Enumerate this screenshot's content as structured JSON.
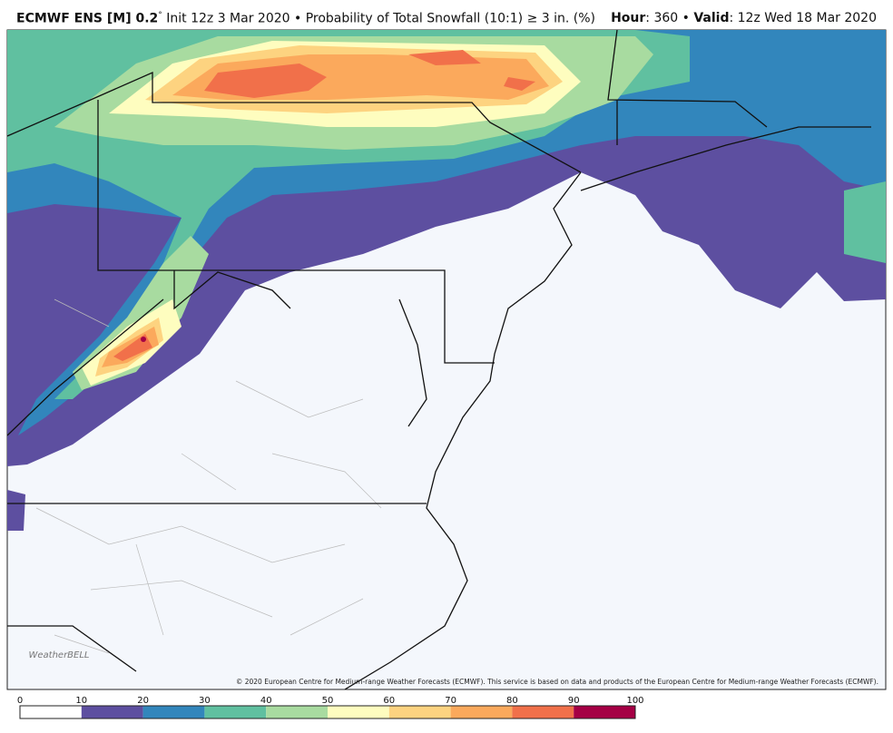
{
  "header": {
    "model": "ECMWF ENS [M] 0.2",
    "degree": "°",
    "title": "Init 12z 3 Mar 2020 • Probability of Total Snowfall (10:1) ≥ 3 in. (%)",
    "hour_label": "Hour",
    "hour": ": 360 •",
    "valid_label": "Valid",
    "valid": ": 12z Wed 18 Mar 2020"
  },
  "logo": "WeatherBELL",
  "copyright": "© 2020 European Centre for Medium-range Weather Forecasts (ECMWF). This service is based on data and products of the European Centre for Medium-range Weather Forecasts (ECMWF).",
  "colorbar": {
    "ticks": [
      0,
      10,
      20,
      30,
      40,
      50,
      60,
      70,
      80,
      90,
      100
    ],
    "colors": [
      "#ffffff",
      "#5d4fa0",
      "#3286bc",
      "#60c0a0",
      "#a8dba0",
      "#fefdbf",
      "#fdd380",
      "#fba95c",
      "#f1704a",
      "#a50044"
    ]
  }
}
